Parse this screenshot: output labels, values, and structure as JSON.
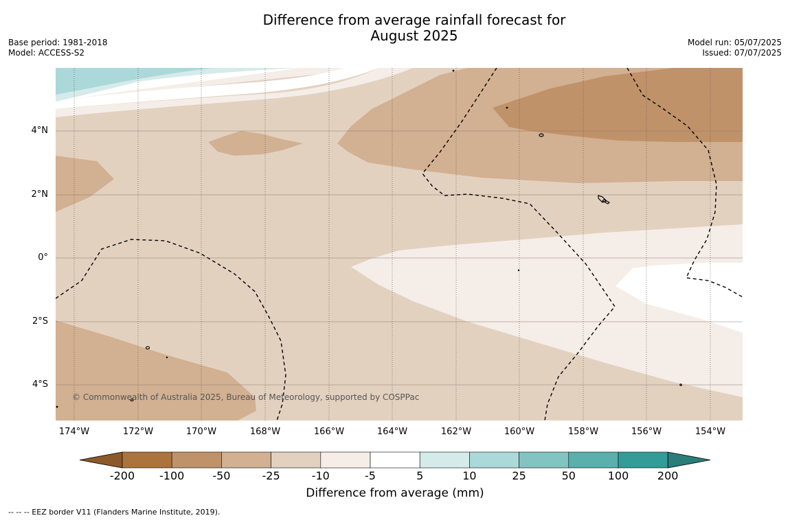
{
  "title": {
    "line1": "Difference from average rainfall forecast for",
    "line2": "August 2025"
  },
  "meta_left": {
    "base_period": "Base period: 1981-2018",
    "model": "Model: ACCESS-S2"
  },
  "meta_right": {
    "model_run": "Model run: 05/07/2025",
    "issued": "Issued: 07/07/2025"
  },
  "map": {
    "lon_range": [
      -174.6,
      -152.9
    ],
    "lat_range": [
      -5.1,
      6.0
    ],
    "lat_ticks": [
      {
        "value": 4,
        "label": "4°N"
      },
      {
        "value": 2,
        "label": "2°N"
      },
      {
        "value": 0,
        "label": "0°"
      },
      {
        "value": -2,
        "label": "2°S"
      },
      {
        "value": -4,
        "label": "4°S"
      }
    ],
    "lon_ticks": [
      {
        "value": -174,
        "label": "174°W"
      },
      {
        "value": -172,
        "label": "172°W"
      },
      {
        "value": -170,
        "label": "170°W"
      },
      {
        "value": -168,
        "label": "168°W"
      },
      {
        "value": -166,
        "label": "166°W"
      },
      {
        "value": -164,
        "label": "164°W"
      },
      {
        "value": -162,
        "label": "162°W"
      },
      {
        "value": -160,
        "label": "160°W"
      },
      {
        "value": -158,
        "label": "158°W"
      },
      {
        "value": -156,
        "label": "156°W"
      },
      {
        "value": -154,
        "label": "154°W"
      }
    ],
    "copyright": "© Commonwealth of Australia 2025, Bureau of Meteorology, supported by COSPPac"
  },
  "colorbar": {
    "title": "Difference from average (mm)",
    "boundaries": [
      "-200",
      "-100",
      "-50",
      "-25",
      "-10",
      "-5",
      "5",
      "10",
      "25",
      "50",
      "100",
      "200"
    ],
    "colors": [
      "#8b5a2b",
      "#ad733c",
      "#c09269",
      "#d2b092",
      "#e3d1c0",
      "#f5ede8",
      "#ffffff",
      "#d5ebea",
      "#abd8d8",
      "#81c4c2",
      "#59b0ad",
      "#339c98",
      "#2a7d79"
    ],
    "palette": {
      "dark_brown": "#c09269",
      "brown": "#d2b092",
      "light_brown": "#e3d1c0",
      "pale": "#f5ede8",
      "white": "#ffffff",
      "pale_teal": "#d5ebea",
      "teal": "#abd8d8"
    }
  },
  "footnote": "--  --  -- EEZ border V11 (Flanders Marine Institute, 2019)."
}
